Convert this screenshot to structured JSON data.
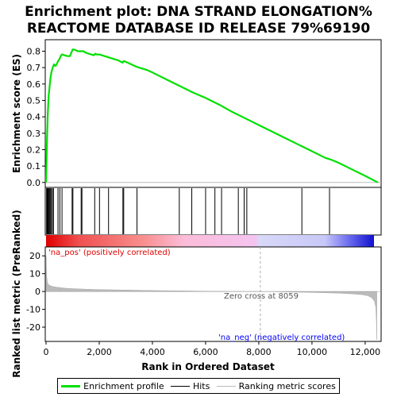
{
  "chart_data": {
    "type": "line",
    "title_lines": [
      "Enrichment plot: DNA STRAND ELONGATION%",
      "REACTOME DATABASE ID RELEASE 79%69190"
    ],
    "xlabel": "Rank in Ordered Dataset",
    "ylabel_top": "Enrichment score (ES)",
    "ylabel_bottom": "Ranked list metric (PreRanked)",
    "xlim": [
      0,
      12600
    ],
    "x_ticks": [
      0,
      2000,
      4000,
      6000,
      8000,
      10000,
      12000
    ],
    "x_tick_labels": [
      "0",
      "2,000",
      "4,000",
      "6,000",
      "8,000",
      "10,000",
      "12,000"
    ],
    "es_ylim": [
      -0.03,
      0.87
    ],
    "es_ticks": [
      0.0,
      0.1,
      0.2,
      0.3,
      0.4,
      0.5,
      0.6,
      0.7,
      0.8
    ],
    "es_tick_labels": [
      "0.0",
      "0.1",
      "0.2",
      "0.3",
      "0.4",
      "0.5",
      "0.6",
      "0.7",
      "0.8"
    ],
    "metric_ylim": [
      -28,
      25
    ],
    "metric_ticks": [
      20,
      10,
      0,
      -10,
      -20
    ],
    "metric_tick_labels": [
      "20",
      "10",
      "0",
      "-10",
      "-20"
    ],
    "series": [
      {
        "name": "Enrichment profile",
        "color": "#00e000",
        "x": [
          0,
          10,
          20,
          30,
          40,
          50,
          60,
          80,
          100,
          130,
          160,
          200,
          250,
          300,
          350,
          400,
          450,
          500,
          550,
          600,
          700,
          800,
          900,
          950,
          1000,
          1050,
          1200,
          1300,
          1400,
          1500,
          1600,
          1700,
          1800,
          1850,
          1900,
          2000,
          2100,
          2200,
          2300,
          2500,
          2700,
          2880,
          2920,
          3000,
          3200,
          3400,
          3600,
          3800,
          4000,
          4500,
          5000,
          5500,
          6000,
          6500,
          7000,
          7500,
          8000,
          8500,
          9000,
          9500,
          10000,
          10500,
          10700,
          11000,
          11500,
          12000,
          12480
        ],
        "y": [
          0.0,
          0.08,
          0.15,
          0.22,
          0.28,
          0.34,
          0.4,
          0.47,
          0.53,
          0.58,
          0.63,
          0.67,
          0.7,
          0.72,
          0.71,
          0.72,
          0.74,
          0.75,
          0.77,
          0.78,
          0.775,
          0.77,
          0.77,
          0.79,
          0.81,
          0.81,
          0.8,
          0.8,
          0.8,
          0.79,
          0.785,
          0.78,
          0.775,
          0.785,
          0.78,
          0.78,
          0.775,
          0.77,
          0.765,
          0.755,
          0.745,
          0.73,
          0.74,
          0.735,
          0.72,
          0.705,
          0.695,
          0.685,
          0.67,
          0.63,
          0.59,
          0.55,
          0.515,
          0.475,
          0.43,
          0.39,
          0.35,
          0.31,
          0.27,
          0.23,
          0.19,
          0.15,
          0.14,
          0.12,
          0.08,
          0.04,
          0.0
        ]
      }
    ],
    "hits": [
      20,
      40,
      60,
      80,
      100,
      130,
      160,
      200,
      240,
      280,
      450,
      520,
      600,
      980,
      1010,
      1320,
      1350,
      1830,
      2010,
      2350,
      2890,
      2920,
      3420,
      5010,
      5480,
      6000,
      6350,
      6600,
      7230,
      7450,
      7550,
      9620,
      10660
    ],
    "metric_profile": {
      "x": [
        0,
        20,
        50,
        100,
        200,
        400,
        700,
        1000,
        1500,
        2000,
        3000,
        4000,
        5000,
        6000,
        7000,
        8059,
        9000,
        10000,
        11000,
        11500,
        11900,
        12100,
        12250,
        12350,
        12400,
        12420,
        12440
      ],
      "y": [
        20,
        9,
        5,
        3.8,
        3.0,
        2.4,
        1.9,
        1.6,
        1.3,
        1.1,
        0.8,
        0.55,
        0.35,
        0.2,
        0.08,
        0.0,
        -0.2,
        -0.5,
        -0.9,
        -1.3,
        -1.8,
        -2.4,
        -3.5,
        -5.5,
        -9,
        -16,
        -27
      ]
    },
    "zero_cross_label": "Zero cross at 8059",
    "zero_cross_x": 8059,
    "pos_label": "'na_pos' (positively correlated)",
    "neg_label": "'na_neg' (negatively correlated)",
    "pos_color": "#e00000",
    "neg_color": "#0000ff",
    "legend": [
      {
        "label": "Enrichment profile",
        "color": "#00e000"
      },
      {
        "label": "Hits",
        "color": "#000000"
      },
      {
        "label": "Ranking metric scores",
        "color": "#bbbbbb"
      }
    ]
  }
}
